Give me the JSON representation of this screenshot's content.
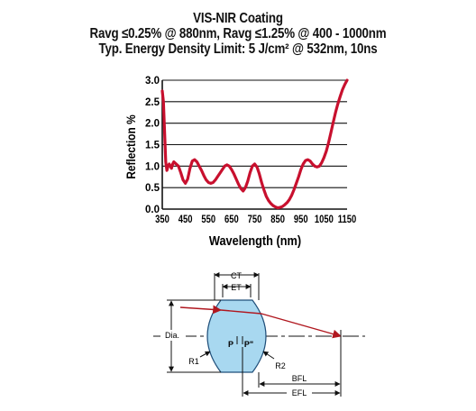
{
  "titles": {
    "line1": "VIS-NIR Coating",
    "line2": "Ravg ≤0.25% @ 880nm, Ravg ≤1.25% @ 400 - 1000nm",
    "line3": "Typ. Energy Density Limit: 5 J/cm² @ 532nm, 10ns"
  },
  "chart_data": {
    "type": "line",
    "title": "VIS-NIR Coating",
    "xlabel": "Wavelength (nm)",
    "ylabel": "Reflection %",
    "xlim": [
      350,
      1150
    ],
    "ylim": [
      0.0,
      3.0
    ],
    "xticks": [
      "350",
      "450",
      "550",
      "650",
      "750",
      "850",
      "950",
      "1050",
      "1150"
    ],
    "yticks": [
      "0.0",
      "0.5",
      "1.0",
      "1.5",
      "2.0",
      "2.5",
      "3.0"
    ],
    "grid": "horizontal",
    "line_color": "#c8102e",
    "series": [
      {
        "x": [
          350,
          355,
          360,
          365,
          370,
          375,
          380,
          385,
          390,
          395,
          400,
          410,
          420,
          430,
          440,
          450,
          460,
          470,
          480,
          490,
          500,
          510,
          520,
          530,
          540,
          550,
          560,
          570,
          580,
          590,
          600,
          610,
          620,
          630,
          640,
          650,
          660,
          670,
          680,
          690,
          700,
          710,
          720,
          730,
          740,
          750,
          760,
          770,
          780,
          790,
          800,
          810,
          820,
          830,
          840,
          850,
          860,
          870,
          880,
          890,
          900,
          910,
          920,
          930,
          940,
          950,
          960,
          970,
          980,
          990,
          1000,
          1010,
          1020,
          1030,
          1040,
          1050,
          1060,
          1070,
          1080,
          1090,
          1100,
          1110,
          1120,
          1130,
          1140,
          1150
        ],
        "y": [
          2.75,
          2.5,
          1.8,
          1.1,
          0.9,
          1.0,
          1.05,
          1.0,
          0.95,
          1.05,
          1.1,
          1.05,
          1.0,
          0.85,
          0.68,
          0.6,
          0.7,
          0.95,
          1.12,
          1.15,
          1.1,
          1.0,
          0.9,
          0.78,
          0.68,
          0.62,
          0.6,
          0.62,
          0.68,
          0.76,
          0.84,
          0.92,
          1.0,
          1.03,
          1.0,
          0.92,
          0.82,
          0.7,
          0.58,
          0.48,
          0.42,
          0.5,
          0.65,
          0.85,
          1.0,
          1.05,
          0.98,
          0.82,
          0.62,
          0.45,
          0.3,
          0.2,
          0.13,
          0.08,
          0.05,
          0.03,
          0.04,
          0.06,
          0.1,
          0.15,
          0.22,
          0.32,
          0.45,
          0.6,
          0.75,
          0.92,
          1.05,
          1.13,
          1.15,
          1.12,
          1.05,
          1.0,
          0.98,
          1.0,
          1.08,
          1.2,
          1.35,
          1.55,
          1.78,
          2.02,
          2.25,
          2.45,
          2.62,
          2.78,
          2.9,
          3.0
        ]
      }
    ]
  },
  "diagram": {
    "labels": {
      "ct": "CT",
      "et": "ET",
      "dia": "Dia.",
      "p": "P",
      "p_prime": "P\"",
      "r1": "R1",
      "r2": "R2",
      "bfl": "BFL",
      "efl": "EFL"
    },
    "colors": {
      "lens_fill": "#a8d8f0",
      "lens_stroke": "#1f4e79",
      "ray": "#b0171f"
    }
  }
}
